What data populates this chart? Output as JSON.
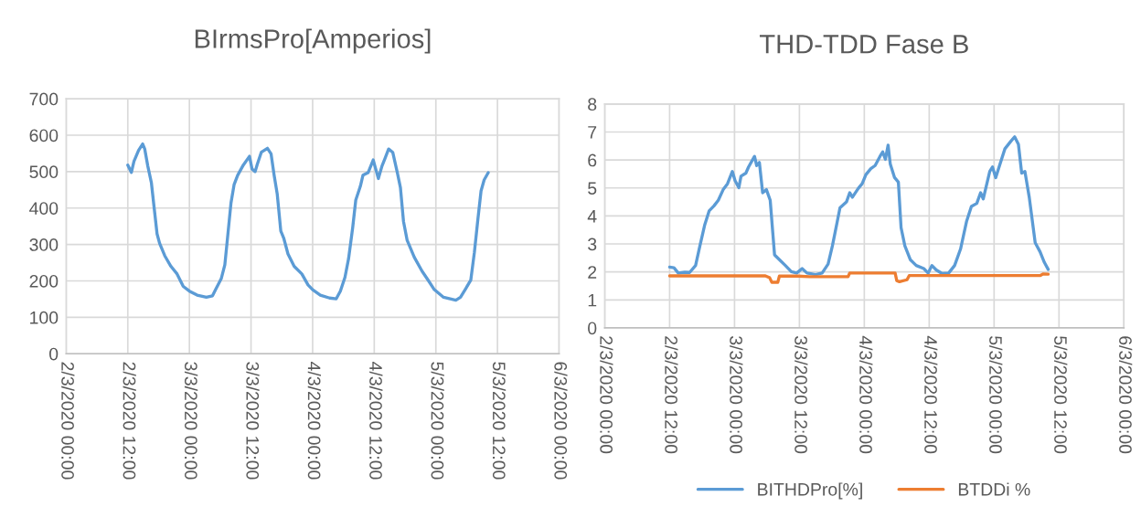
{
  "chart_data": [
    {
      "type": "line",
      "title": "BIrmsPro[Amperios]",
      "grid": true,
      "legend": false,
      "marker": "none",
      "line_style": "solid",
      "xlim": [
        "2020-03-02T00:00",
        "2020-03-06T00:00"
      ],
      "xticks": [
        {
          "value": "2020-03-02T00:00",
          "label": "2/3/2020 00:00"
        },
        {
          "value": "2020-03-02T12:00",
          "label": "2/3/2020 12:00"
        },
        {
          "value": "2020-03-03T00:00",
          "label": "3/3/2020 00:00"
        },
        {
          "value": "2020-03-03T12:00",
          "label": "3/3/2020 12:00"
        },
        {
          "value": "2020-03-04T00:00",
          "label": "4/3/2020 00:00"
        },
        {
          "value": "2020-03-04T12:00",
          "label": "4/3/2020 12:00"
        },
        {
          "value": "2020-03-05T00:00",
          "label": "5/3/2020 00:00"
        },
        {
          "value": "2020-03-05T12:00",
          "label": "5/3/2020 12:00"
        },
        {
          "value": "2020-03-06T00:00",
          "label": "6/3/2020 00:00"
        }
      ],
      "ylim": [
        0,
        700
      ],
      "yticks": [
        0,
        100,
        200,
        300,
        400,
        500,
        600,
        700
      ],
      "series": [
        {
          "color": "#5b9bd5",
          "x": [
            "2020-03-02T12:00",
            "2020-03-02T12:42",
            "2020-03-02T13:12",
            "2020-03-02T14:06",
            "2020-03-02T14:54",
            "2020-03-02T15:18",
            "2020-03-02T15:54",
            "2020-03-02T16:36",
            "2020-03-02T17:06",
            "2020-03-02T17:42",
            "2020-03-02T18:12",
            "2020-03-02T19:12",
            "2020-03-02T20:24",
            "2020-03-02T21:36",
            "2020-03-02T22:48",
            "2020-03-03T00:00",
            "2020-03-03T01:30",
            "2020-03-03T03:18",
            "2020-03-03T04:30",
            "2020-03-03T05:06",
            "2020-03-03T06:12",
            "2020-03-03T06:54",
            "2020-03-03T07:30",
            "2020-03-03T08:06",
            "2020-03-03T08:42",
            "2020-03-03T09:24",
            "2020-03-03T10:30",
            "2020-03-03T11:42",
            "2020-03-03T12:12",
            "2020-03-03T12:48",
            "2020-03-03T13:12",
            "2020-03-03T14:00",
            "2020-03-03T15:12",
            "2020-03-03T15:54",
            "2020-03-03T16:30",
            "2020-03-03T17:06",
            "2020-03-03T17:48",
            "2020-03-03T18:24",
            "2020-03-03T19:12",
            "2020-03-03T20:24",
            "2020-03-03T21:54",
            "2020-03-03T23:06",
            "2020-03-04T00:00",
            "2020-03-04T01:30",
            "2020-03-04T03:18",
            "2020-03-04T04:36",
            "2020-03-04T05:24",
            "2020-03-04T06:18",
            "2020-03-04T07:00",
            "2020-03-04T07:48",
            "2020-03-04T08:24",
            "2020-03-04T09:18",
            "2020-03-04T09:48",
            "2020-03-04T10:48",
            "2020-03-04T11:48",
            "2020-03-04T12:48",
            "2020-03-04T13:30",
            "2020-03-04T14:06",
            "2020-03-04T14:48",
            "2020-03-04T15:36",
            "2020-03-04T16:30",
            "2020-03-04T17:06",
            "2020-03-04T17:42",
            "2020-03-04T18:24",
            "2020-03-04T19:48",
            "2020-03-04T21:18",
            "2020-03-04T22:30",
            "2020-03-04T23:42",
            "2020-03-05T01:30",
            "2020-03-05T03:54",
            "2020-03-05T04:48",
            "2020-03-05T05:42",
            "2020-03-05T06:48",
            "2020-03-05T07:30",
            "2020-03-05T08:12",
            "2020-03-05T08:48",
            "2020-03-05T09:24",
            "2020-03-05T10:12"
          ],
          "values": [
            518,
            498,
            528,
            558,
            576,
            562,
            515,
            469,
            405,
            329,
            303,
            269,
            240,
            219,
            185,
            172,
            161,
            155,
            159,
            176,
            206,
            244,
            329,
            414,
            464,
            490,
            518,
            542,
            507,
            500,
            519,
            553,
            564,
            549,
            490,
            439,
            337,
            316,
            274,
            240,
            219,
            189,
            176,
            161,
            153,
            151,
            172,
            210,
            261,
            346,
            422,
            460,
            490,
            497,
            532,
            481,
            515,
            536,
            562,
            553,
            497,
            456,
            363,
            312,
            265,
            227,
            202,
            176,
            155,
            147,
            155,
            176,
            202,
            278,
            371,
            447,
            477,
            497
          ]
        }
      ]
    },
    {
      "type": "line",
      "title": "THD-TDD Fase B",
      "grid": true,
      "legend": "bottom",
      "marker": "none",
      "line_style": "solid",
      "xlim": [
        "2020-03-02T00:00",
        "2020-03-06T00:00"
      ],
      "xticks": [
        {
          "value": "2020-03-02T00:00",
          "label": "2/3/2020 00:00"
        },
        {
          "value": "2020-03-02T12:00",
          "label": "2/3/2020 12:00"
        },
        {
          "value": "2020-03-03T00:00",
          "label": "3/3/2020 00:00"
        },
        {
          "value": "2020-03-03T12:00",
          "label": "3/3/2020 12:00"
        },
        {
          "value": "2020-03-04T00:00",
          "label": "4/3/2020 00:00"
        },
        {
          "value": "2020-03-04T12:00",
          "label": "4/3/2020 12:00"
        },
        {
          "value": "2020-03-05T00:00",
          "label": "5/3/2020 00:00"
        },
        {
          "value": "2020-03-05T12:00",
          "label": "5/3/2020 12:00"
        },
        {
          "value": "2020-03-06T00:00",
          "label": "6/3/2020 00:00"
        }
      ],
      "ylim": [
        0,
        8
      ],
      "yticks": [
        0,
        1,
        2,
        3,
        4,
        5,
        6,
        7,
        8
      ],
      "series": [
        {
          "name": "BITHDPro[%]",
          "color": "#5b9bd5",
          "x": [
            "2020-03-02T12:00",
            "2020-03-02T12:48",
            "2020-03-02T13:36",
            "2020-03-02T14:48",
            "2020-03-02T15:42",
            "2020-03-02T16:48",
            "2020-03-02T17:36",
            "2020-03-02T18:30",
            "2020-03-02T19:18",
            "2020-03-02T20:12",
            "2020-03-02T21:00",
            "2020-03-02T21:54",
            "2020-03-02T22:42",
            "2020-03-02T23:36",
            "2020-03-03T00:06",
            "2020-03-03T00:48",
            "2020-03-03T01:12",
            "2020-03-03T02:06",
            "2020-03-03T02:36",
            "2020-03-03T03:42",
            "2020-03-03T04:06",
            "2020-03-03T04:36",
            "2020-03-03T05:12",
            "2020-03-03T05:54",
            "2020-03-03T06:36",
            "2020-03-03T07:24",
            "2020-03-03T08:18",
            "2020-03-03T09:24",
            "2020-03-03T10:30",
            "2020-03-03T11:30",
            "2020-03-03T12:30",
            "2020-03-03T13:24",
            "2020-03-03T15:00",
            "2020-03-03T16:12",
            "2020-03-03T17:18",
            "2020-03-03T18:06",
            "2020-03-03T19:00",
            "2020-03-03T19:30",
            "2020-03-03T20:42",
            "2020-03-03T21:18",
            "2020-03-03T21:48",
            "2020-03-03T22:54",
            "2020-03-03T23:36",
            "2020-03-04T00:18",
            "2020-03-04T01:12",
            "2020-03-04T02:00",
            "2020-03-04T02:54",
            "2020-03-04T03:24",
            "2020-03-04T03:54",
            "2020-03-04T04:24",
            "2020-03-04T04:48",
            "2020-03-04T05:36",
            "2020-03-04T06:18",
            "2020-03-04T06:48",
            "2020-03-04T07:30",
            "2020-03-04T08:30",
            "2020-03-04T09:36",
            "2020-03-04T11:00",
            "2020-03-04T11:48",
            "2020-03-04T12:30",
            "2020-03-04T13:18",
            "2020-03-04T14:24",
            "2020-03-04T15:36",
            "2020-03-04T16:42",
            "2020-03-04T17:48",
            "2020-03-04T18:54",
            "2020-03-04T19:48",
            "2020-03-04T20:48",
            "2020-03-04T21:30",
            "2020-03-04T22:00",
            "2020-03-04T23:12",
            "2020-03-04T23:42",
            "2020-03-05T00:18",
            "2020-03-05T01:06",
            "2020-03-05T02:00",
            "2020-03-05T03:06",
            "2020-03-05T03:48",
            "2020-03-05T04:30",
            "2020-03-05T05:06",
            "2020-03-05T05:42",
            "2020-03-05T06:30",
            "2020-03-05T07:36",
            "2020-03-05T08:30",
            "2020-03-05T09:18",
            "2020-03-05T10:00"
          ],
          "values": [
            2.17,
            2.15,
            1.96,
            1.99,
            1.98,
            2.23,
            2.93,
            3.69,
            4.18,
            4.36,
            4.56,
            4.94,
            5.15,
            5.59,
            5.26,
            5.01,
            5.42,
            5.53,
            5.75,
            6.13,
            5.8,
            5.91,
            4.83,
            4.94,
            4.56,
            2.61,
            2.44,
            2.23,
            2.01,
            1.96,
            2.12,
            1.96,
            1.9,
            1.96,
            2.28,
            2.93,
            3.8,
            4.29,
            4.5,
            4.83,
            4.67,
            4.99,
            5.15,
            5.48,
            5.69,
            5.8,
            6.13,
            6.29,
            6.02,
            6.53,
            5.86,
            5.37,
            5.21,
            3.58,
            2.93,
            2.44,
            2.23,
            2.12,
            1.96,
            2.23,
            2.07,
            1.94,
            1.96,
            2.23,
            2.82,
            3.8,
            4.34,
            4.45,
            4.83,
            4.61,
            5.59,
            5.75,
            5.37,
            5.86,
            6.4,
            6.67,
            6.83,
            6.56,
            5.53,
            5.59,
            4.67,
            3.04,
            2.72,
            2.34,
            2.09
          ]
        },
        {
          "name": "BTDDi %",
          "color": "#ed7d31",
          "x": [
            "2020-03-02T12:00",
            "2020-03-03T05:42",
            "2020-03-03T06:30",
            "2020-03-03T06:54",
            "2020-03-03T08:00",
            "2020-03-03T08:18",
            "2020-03-03T11:42",
            "2020-03-03T13:54",
            "2020-03-03T21:00",
            "2020-03-03T21:18",
            "2020-03-04T05:42",
            "2020-03-04T06:00",
            "2020-03-04T06:30",
            "2020-03-04T07:54",
            "2020-03-04T08:18",
            "2020-03-05T08:30",
            "2020-03-05T09:06",
            "2020-03-05T10:00"
          ],
          "values": [
            1.86,
            1.86,
            1.79,
            1.63,
            1.63,
            1.85,
            1.85,
            1.83,
            1.83,
            1.96,
            1.96,
            1.69,
            1.65,
            1.72,
            1.87,
            1.87,
            1.93,
            1.92
          ]
        }
      ]
    }
  ]
}
